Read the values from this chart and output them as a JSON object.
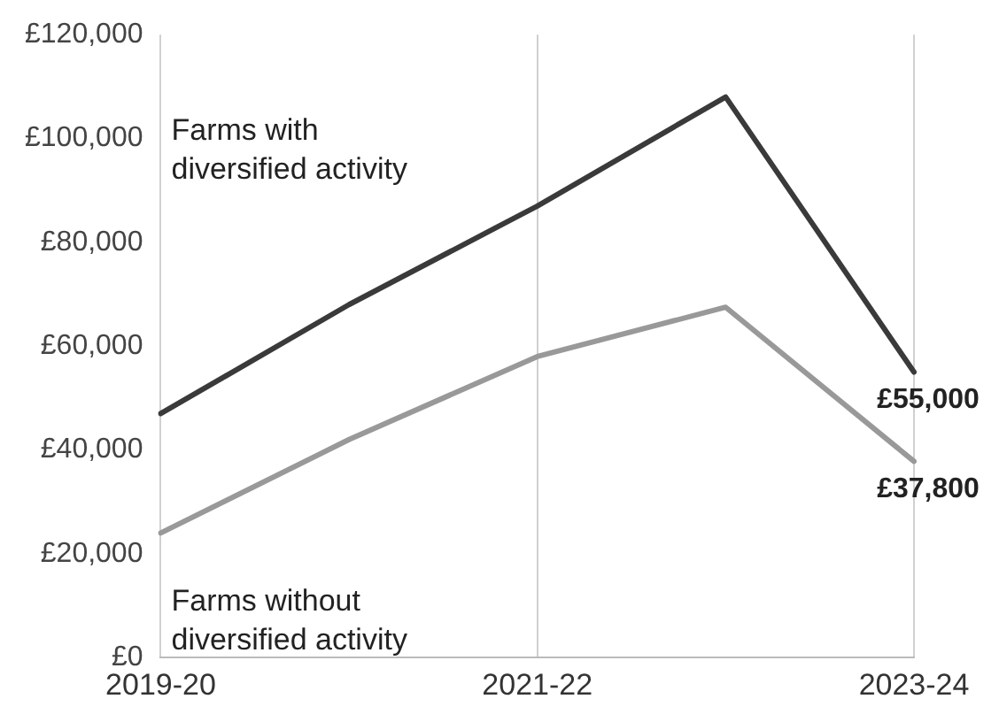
{
  "chart_data": {
    "type": "line",
    "categories": [
      "2019-20",
      null,
      "2021-22",
      null,
      "2023-24"
    ],
    "series": [
      {
        "name": "Farms with diversified activity",
        "color": "#3a3a3a",
        "values": [
          47000,
          68000,
          87000,
          108000,
          55000
        ],
        "value_labels": [
          null,
          null,
          null,
          null,
          "£55,000"
        ]
      },
      {
        "name": "Farms without diversified activity",
        "color": "#999999",
        "values": [
          24000,
          42000,
          58000,
          67500,
          37800
        ],
        "value_labels": [
          null,
          null,
          null,
          null,
          "£37,800"
        ]
      }
    ],
    "ylim": [
      0,
      120000
    ],
    "yticks": [
      {
        "value": 0,
        "label": "£0"
      },
      {
        "value": 20000,
        "label": "£20,000"
      },
      {
        "value": 40000,
        "label": "£40,000"
      },
      {
        "value": 60000,
        "label": "£60,000"
      },
      {
        "value": 80000,
        "label": "£80,000"
      },
      {
        "value": 100000,
        "label": "£100,000"
      },
      {
        "value": 120000,
        "label": "£120,000"
      }
    ],
    "grid": "x",
    "legend": false,
    "marker": "none",
    "line_style": "solid"
  }
}
